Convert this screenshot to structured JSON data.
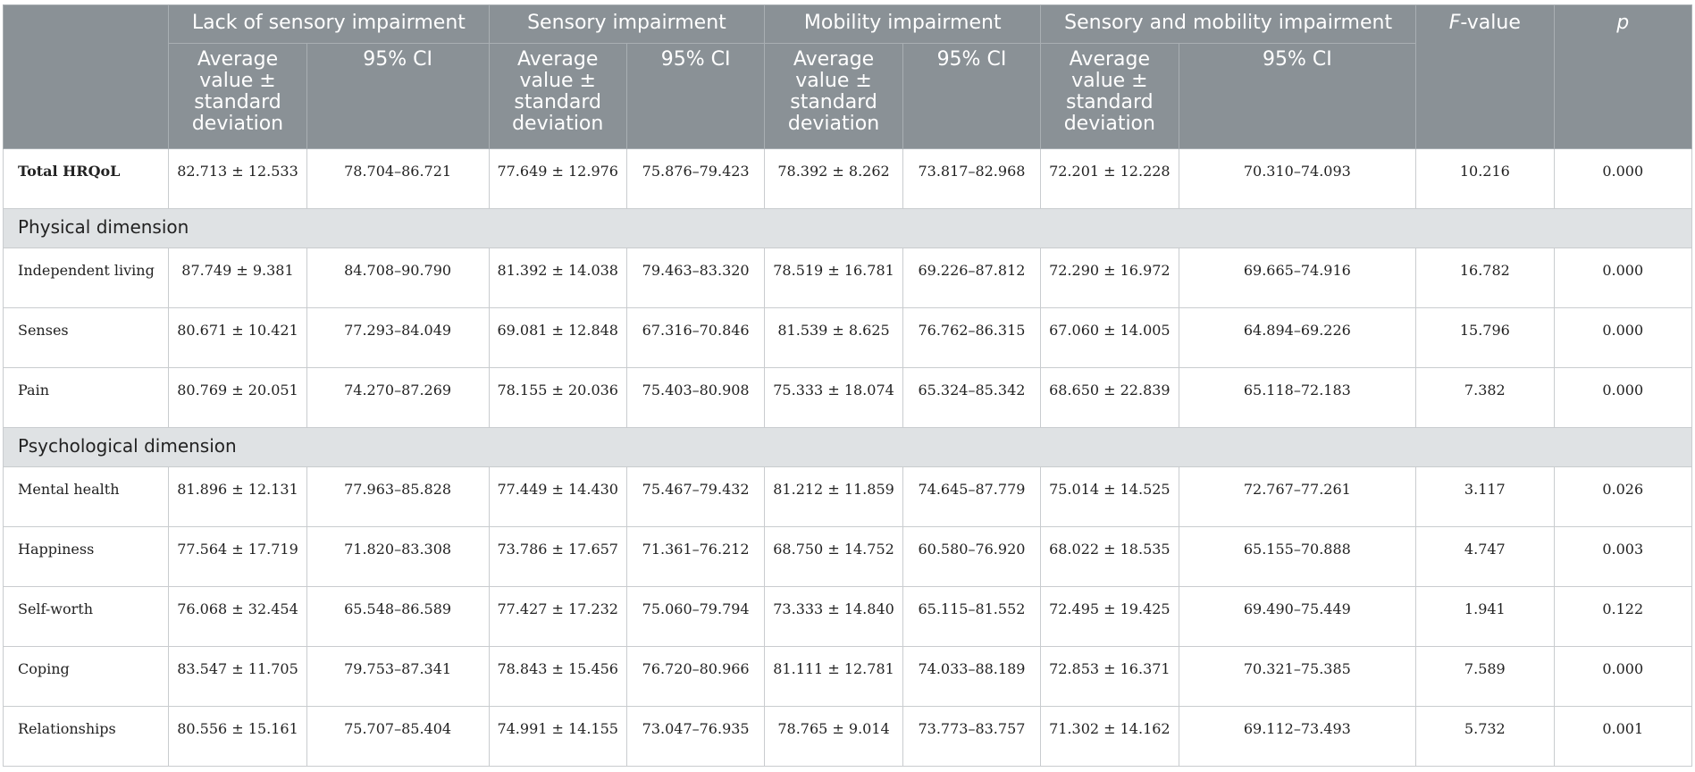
{
  "table": {
    "groups": [
      {
        "title": "Lack of sensory impairment"
      },
      {
        "title": "Sensory impairment"
      },
      {
        "title": "Mobility impairment"
      },
      {
        "title": "Sensory and mobility impairment"
      }
    ],
    "f_header": {
      "italic": "F",
      "rest": "-value"
    },
    "p_header": "p",
    "subheaders": {
      "mean_sd": "Average value ± standard deviation",
      "ci": "95% CI"
    },
    "total_row": {
      "label": "Total HRQoL",
      "cells": [
        "82.713 ± 12.533",
        "78.704–86.721",
        "77.649 ± 12.976",
        "75.876–79.423",
        "78.392 ± 8.262",
        "73.817–82.968",
        "72.201 ± 12.228",
        "70.310–74.093",
        "10.216",
        "0.000"
      ]
    },
    "sections": [
      {
        "title": "Physical dimension",
        "rows": [
          {
            "label": "Independent living",
            "cells": [
              "87.749 ± 9.381",
              "84.708–90.790",
              "81.392 ± 14.038",
              "79.463–83.320",
              "78.519 ± 16.781",
              "69.226–87.812",
              "72.290 ± 16.972",
              "69.665–74.916",
              "16.782",
              "0.000"
            ]
          },
          {
            "label": "Senses",
            "cells": [
              "80.671 ± 10.421",
              "77.293–84.049",
              "69.081 ± 12.848",
              "67.316–70.846",
              "81.539 ± 8.625",
              "76.762–86.315",
              "67.060 ± 14.005",
              "64.894–69.226",
              "15.796",
              "0.000"
            ]
          },
          {
            "label": "Pain",
            "cells": [
              "80.769 ± 20.051",
              "74.270–87.269",
              "78.155 ± 20.036",
              "75.403–80.908",
              "75.333 ± 18.074",
              "65.324–85.342",
              "68.650 ± 22.839",
              "65.118–72.183",
              "7.382",
              "0.000"
            ]
          }
        ]
      },
      {
        "title": "Psychological dimension",
        "rows": [
          {
            "label": "Mental health",
            "cells": [
              "81.896 ± 12.131",
              "77.963–85.828",
              "77.449 ± 14.430",
              "75.467–79.432",
              "81.212 ± 11.859",
              "74.645–87.779",
              "75.014 ± 14.525",
              "72.767–77.261",
              "3.117",
              "0.026"
            ]
          },
          {
            "label": "Happiness",
            "cells": [
              "77.564 ± 17.719",
              "71.820–83.308",
              "73.786 ± 17.657",
              "71.361–76.212",
              "68.750 ± 14.752",
              "60.580–76.920",
              "68.022 ± 18.535",
              "65.155–70.888",
              "4.747",
              "0.003"
            ]
          },
          {
            "label": "Self-worth",
            "cells": [
              "76.068 ± 32.454",
              "65.548–86.589",
              "77.427 ± 17.232",
              "75.060–79.794",
              "73.333 ± 14.840",
              "65.115–81.552",
              "72.495 ± 19.425",
              "69.490–75.449",
              "1.941",
              "0.122"
            ]
          },
          {
            "label": "Coping",
            "cells": [
              "83.547 ± 11.705",
              "79.753–87.341",
              "78.843 ± 15.456",
              "76.720–80.966",
              "81.111 ± 12.781",
              "74.033–88.189",
              "72.853 ± 16.371",
              "70.321–75.385",
              "7.589",
              "0.000"
            ]
          },
          {
            "label": "Relationships",
            "cells": [
              "80.556 ± 15.161",
              "75.707–85.404",
              "74.991 ± 14.155",
              "73.047–76.935",
              "78.765 ± 9.014",
              "73.773–83.757",
              "71.302 ± 14.162",
              "69.112–73.493",
              "5.732",
              "0.001"
            ]
          }
        ]
      }
    ]
  }
}
